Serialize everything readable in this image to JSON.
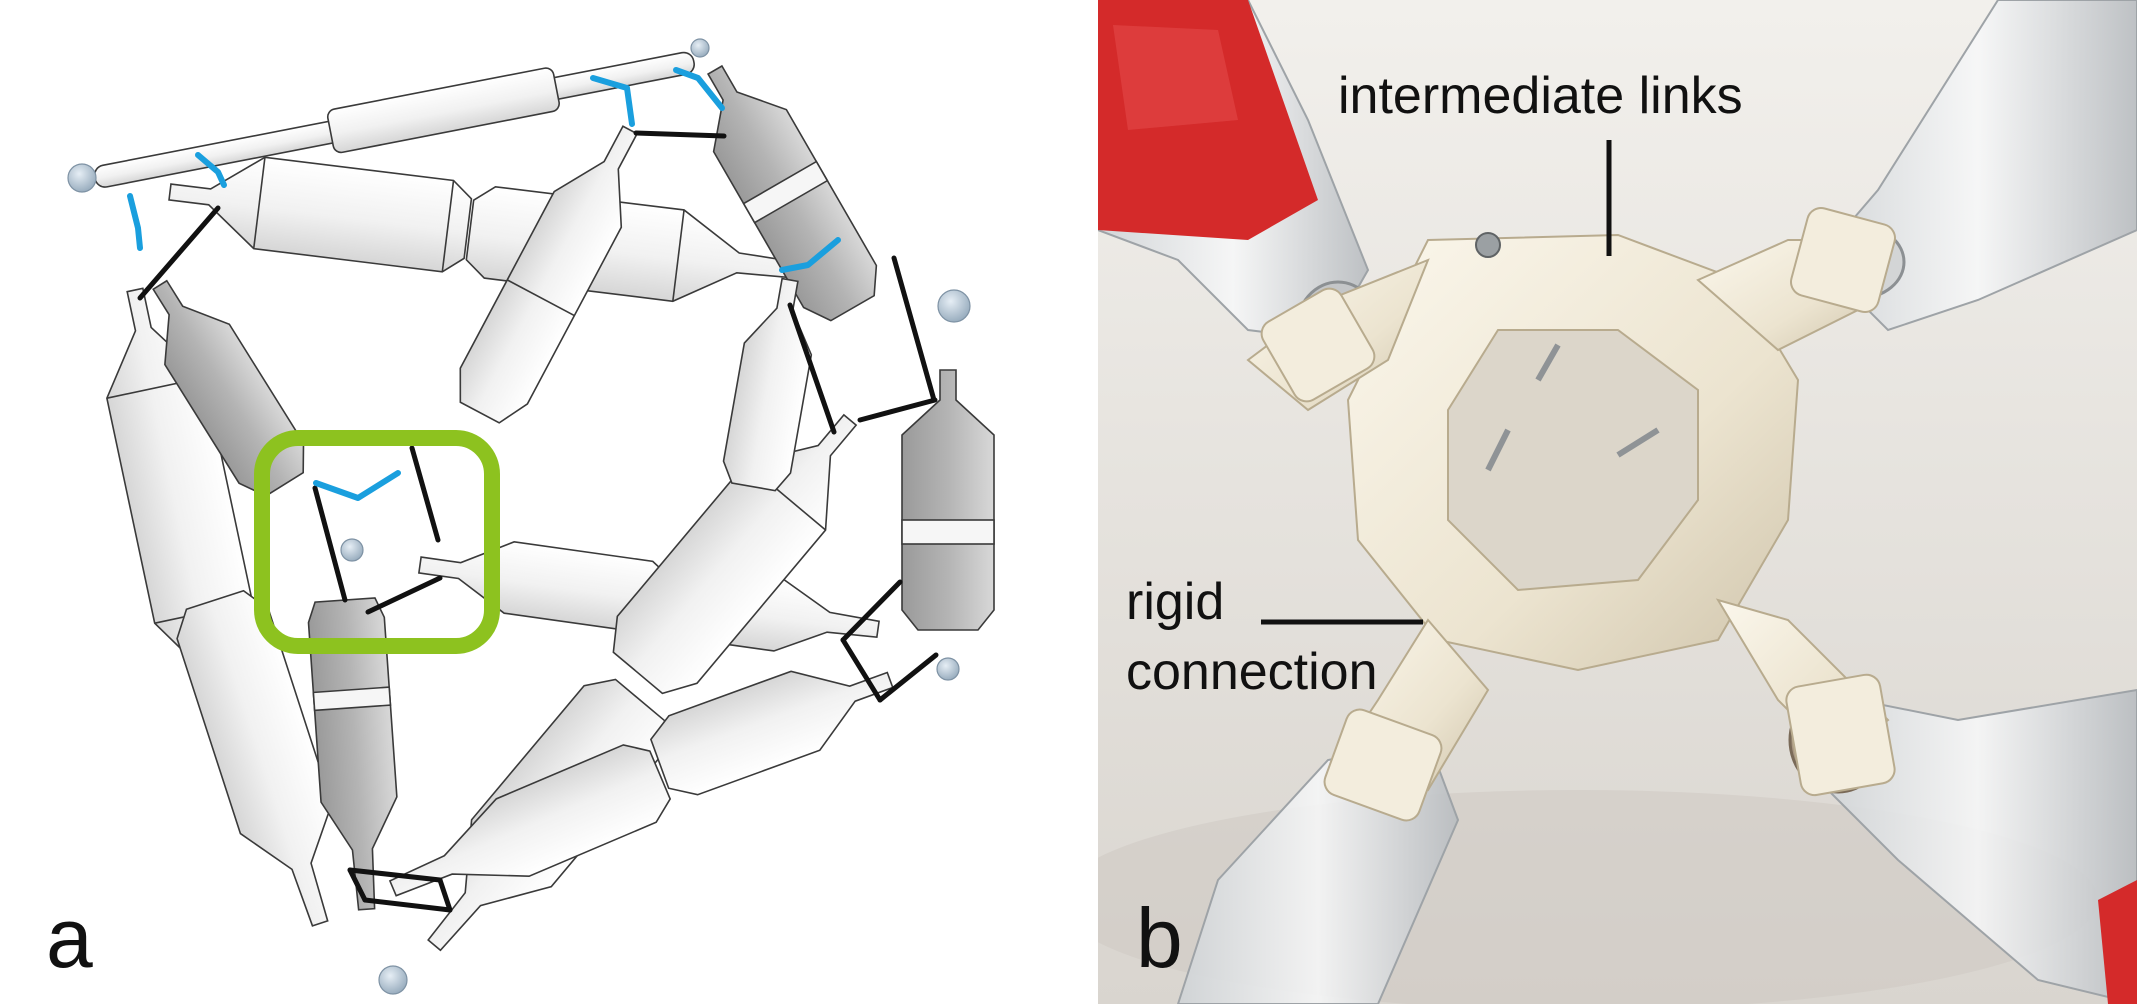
{
  "figure": {
    "panel_a": {
      "letter": "a",
      "colors": {
        "link": "#1a9fde",
        "highlight_box": "#8dc21f",
        "connector": "#111111",
        "joint": "#b3c4d3",
        "strut_light": "#f4f4f4",
        "strut_shaded": "#bdbdbd"
      }
    },
    "panel_b": {
      "letter": "b",
      "annotations": {
        "intermediate_links": "intermediate links",
        "rigid_line1": "rigid",
        "rigid_line2": "connection"
      },
      "colors": {
        "printed_part": "#f1ebdc",
        "bottle_label": "#d42a2a",
        "background": "#e7e4df"
      }
    }
  }
}
